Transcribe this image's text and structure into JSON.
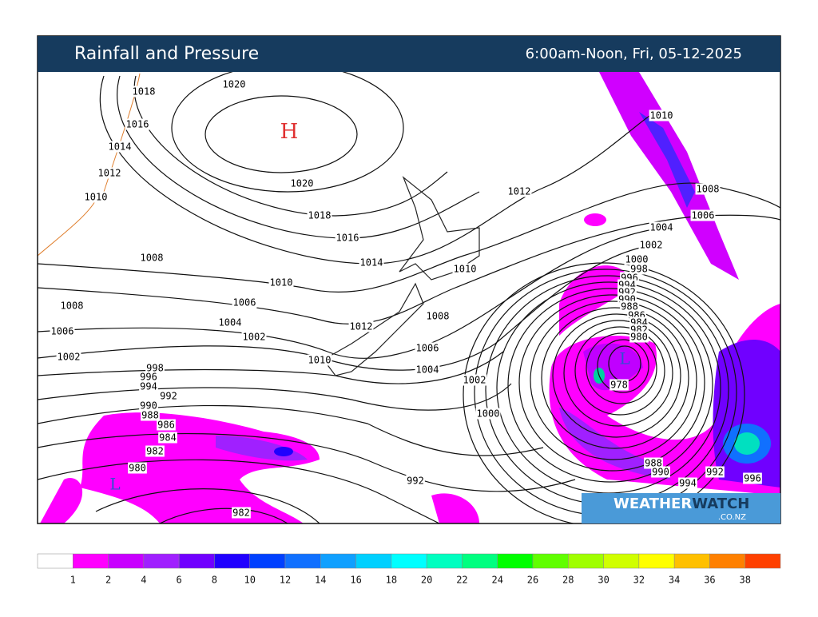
{
  "header": {
    "title": "Rainfall and Pressure",
    "period": "6:00am-Noon, Fri, 05-12-2025"
  },
  "pressure_centers": [
    {
      "label": "H",
      "color": "#e03030"
    },
    {
      "label": "L",
      "color": "#3050d0"
    },
    {
      "label": "L",
      "color": "#3050d0"
    }
  ],
  "isobars": {
    "labels": [
      1018,
      1016,
      1014,
      1012,
      1010,
      1020,
      1020,
      1018,
      1016,
      1014,
      1012,
      1010,
      1008,
      1006,
      1004,
      1002,
      1000,
      998,
      996,
      994,
      992,
      990,
      988,
      986,
      984,
      982,
      980,
      978,
      1010,
      1008,
      1006,
      1004,
      1002,
      1000,
      1008,
      1010,
      1006,
      1004,
      1002,
      1012,
      1010,
      1008,
      1006,
      1002,
      998,
      996,
      994,
      992,
      990,
      988,
      986,
      984,
      982,
      980,
      992,
      982,
      988,
      990,
      992,
      994,
      996
    ]
  },
  "logo": {
    "part1": "WEATHER",
    "part2": "WATCH",
    "suffix": ".CO.NZ"
  },
  "legend": {
    "colors": [
      "#ffffff",
      "#ff00ff",
      "#c800ff",
      "#a020ff",
      "#7000ff",
      "#2000ff",
      "#0040ff",
      "#1070ff",
      "#10a0ff",
      "#00d0ff",
      "#00ffff",
      "#00ffc0",
      "#00ff80",
      "#00ff00",
      "#60ff00",
      "#a0ff00",
      "#d0ff00",
      "#ffff00",
      "#ffc000",
      "#ff8000",
      "#ff4000"
    ],
    "labels": [
      1,
      2,
      4,
      6,
      8,
      10,
      12,
      14,
      16,
      18,
      20,
      22,
      24,
      26,
      28,
      30,
      32,
      34,
      36,
      38
    ]
  }
}
